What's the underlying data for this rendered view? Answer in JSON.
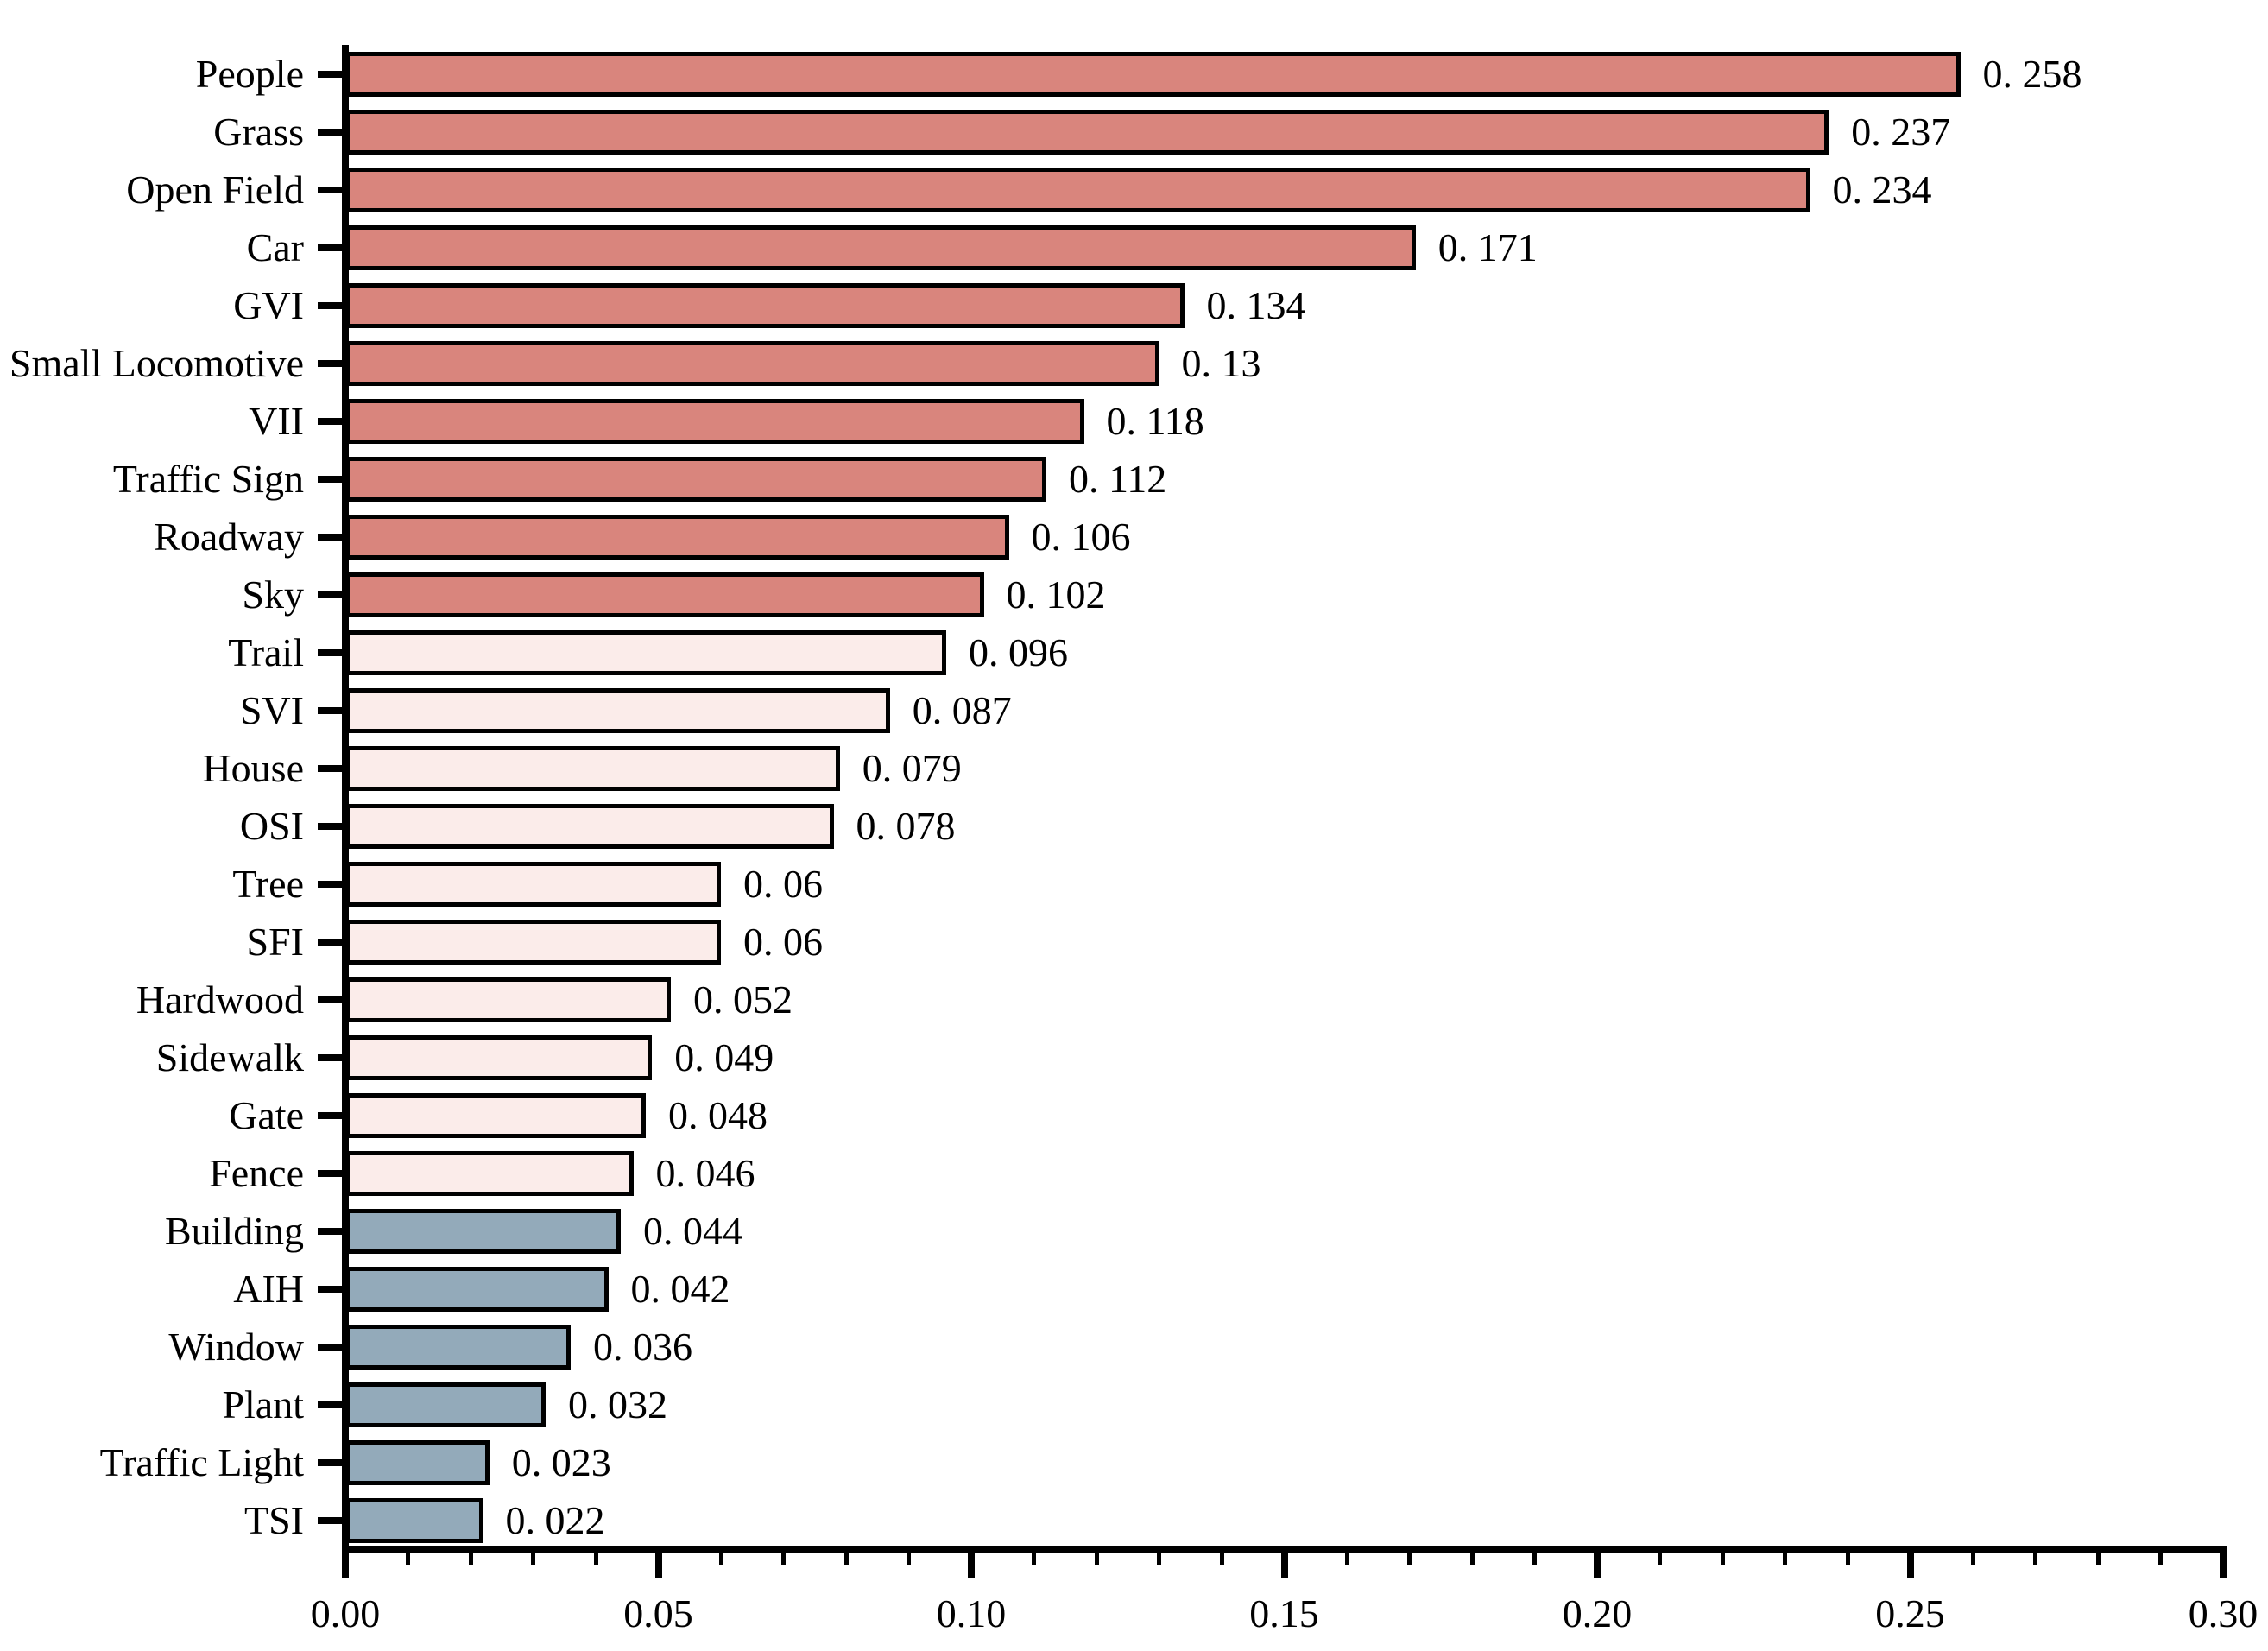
{
  "chart_data": {
    "type": "bar",
    "orientation": "horizontal",
    "title": "",
    "xlabel": "",
    "ylabel": "",
    "xlim": [
      0,
      0.3
    ],
    "x_major_tick_step": 0.05,
    "x_minor_tick_step": 0.01,
    "x_tick_labels": [
      "0.00",
      "0.05",
      "0.10",
      "0.15",
      "0.20",
      "0.25",
      "0.30"
    ],
    "grid": "off",
    "legend": "none",
    "edge_color": "#000000",
    "background_color": "#ffffff",
    "color_groups": {
      "high": "#d9857d",
      "mid": "#fbecea",
      "low": "#93aaba"
    },
    "bars": [
      {
        "category": "People",
        "value": 0.258,
        "value_label": "0. 258",
        "group": "high"
      },
      {
        "category": "Grass",
        "value": 0.237,
        "value_label": "0. 237",
        "group": "high"
      },
      {
        "category": "Open Field",
        "value": 0.234,
        "value_label": "0. 234",
        "group": "high"
      },
      {
        "category": "Car",
        "value": 0.171,
        "value_label": "0. 171",
        "group": "high"
      },
      {
        "category": "GVI",
        "value": 0.134,
        "value_label": "0. 134",
        "group": "high"
      },
      {
        "category": "Small Locomotive",
        "value": 0.13,
        "value_label": "0. 13",
        "group": "high"
      },
      {
        "category": "VII",
        "value": 0.118,
        "value_label": "0. 118",
        "group": "high"
      },
      {
        "category": "Traffic Sign",
        "value": 0.112,
        "value_label": "0. 112",
        "group": "high"
      },
      {
        "category": "Roadway",
        "value": 0.106,
        "value_label": "0. 106",
        "group": "high"
      },
      {
        "category": "Sky",
        "value": 0.102,
        "value_label": "0. 102",
        "group": "high"
      },
      {
        "category": "Trail",
        "value": 0.096,
        "value_label": "0. 096",
        "group": "mid"
      },
      {
        "category": "SVI",
        "value": 0.087,
        "value_label": "0. 087",
        "group": "mid"
      },
      {
        "category": "House",
        "value": 0.079,
        "value_label": "0. 079",
        "group": "mid"
      },
      {
        "category": "OSI",
        "value": 0.078,
        "value_label": "0. 078",
        "group": "mid"
      },
      {
        "category": "Tree",
        "value": 0.06,
        "value_label": "0. 06",
        "group": "mid"
      },
      {
        "category": "SFI",
        "value": 0.06,
        "value_label": "0. 06",
        "group": "mid"
      },
      {
        "category": "Hardwood",
        "value": 0.052,
        "value_label": "0. 052",
        "group": "mid"
      },
      {
        "category": "Sidewalk",
        "value": 0.049,
        "value_label": "0. 049",
        "group": "mid"
      },
      {
        "category": "Gate",
        "value": 0.048,
        "value_label": "0. 048",
        "group": "mid"
      },
      {
        "category": "Fence",
        "value": 0.046,
        "value_label": "0. 046",
        "group": "mid"
      },
      {
        "category": "Building",
        "value": 0.044,
        "value_label": "0. 044",
        "group": "low"
      },
      {
        "category": "AIH",
        "value": 0.042,
        "value_label": "0. 042",
        "group": "low"
      },
      {
        "category": "Window",
        "value": 0.036,
        "value_label": "0. 036",
        "group": "low"
      },
      {
        "category": "Plant",
        "value": 0.032,
        "value_label": "0. 032",
        "group": "low"
      },
      {
        "category": "Traffic Light",
        "value": 0.023,
        "value_label": "0. 023",
        "group": "low"
      },
      {
        "category": "TSI",
        "value": 0.022,
        "value_label": "0. 022",
        "group": "low"
      }
    ]
  }
}
